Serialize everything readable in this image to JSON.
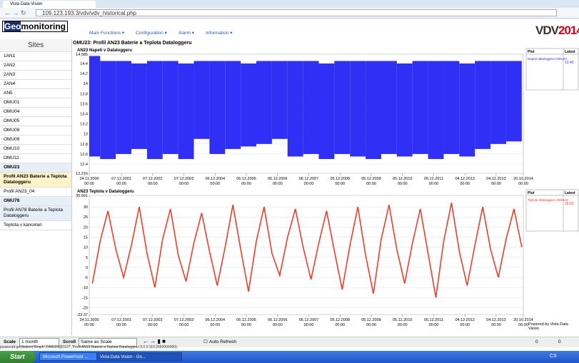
{
  "browser": {
    "tab": "Vista Data Vision",
    "address": "109.123.193.3/vdv/vdv_historical.php"
  },
  "header": {
    "logo": [
      "Geo",
      "monitoring"
    ],
    "menus": [
      "Main Functions",
      "Configuration",
      "Alarm",
      "Information"
    ],
    "brand": [
      "VDV",
      "2014"
    ]
  },
  "sidebar": {
    "title": "Sites",
    "items": [
      "1AN1",
      "2AN2",
      "2AN3",
      "2AN4",
      "AN5",
      "OMU01",
      "OMU04",
      "OMU05",
      "OMU08",
      "OMU09",
      "OMU10",
      "OMU11",
      "OMU23",
      "Profil AN23 Baterie a Teplota Dataloggeru",
      "Profil AN23_04",
      "OMU78",
      "Profil AN78 Baterie a Teplota Dataloggeru",
      "Teplota v kancelari"
    ]
  },
  "page_title": "OMU23: Profil AN23 Baterie a Teplota Dataloggeru",
  "chart_data": [
    {
      "type": "range",
      "title": "AN23 Napeti v Dataloggeru",
      "legend_headers": [
        "Plot",
        "Latest"
      ],
      "grid": true,
      "x": [
        2001,
        2001.5,
        2002,
        2002.5,
        2003,
        2003.5,
        2004,
        2004.5,
        2005,
        2005.5,
        2006,
        2006.5,
        2007,
        2007.5,
        2008,
        2008.5,
        2009,
        2009.5,
        2010,
        2010.5,
        2011,
        2011.5,
        2012,
        2012.5,
        2013,
        2013.5,
        2014,
        2014.5
      ],
      "series": [
        {
          "name": "Napeti dataloggeru OMU23",
          "latest": "12.40",
          "color": "#2f2ff5",
          "values": [
            14.55,
            14.45,
            14.45,
            14.4,
            14.45,
            14.45,
            14.4,
            14.45,
            14.45,
            14.45,
            14.4,
            14.45,
            14.45,
            14.45,
            14.45,
            14.4,
            14.45,
            14.45,
            14.45,
            14.45,
            14.4,
            14.45,
            14.45,
            14.45,
            14.4,
            14.45,
            14.45,
            14.45
          ],
          "low": [
            12.55,
            12.5,
            12.6,
            12.7,
            12.5,
            12.6,
            12.5,
            12.9,
            12.6,
            12.7,
            12.75,
            12.8,
            12.9,
            12.55,
            12.6,
            12.5,
            12.6,
            12.55,
            12.5,
            12.6,
            12.55,
            12.6,
            12.5,
            12.6,
            12.55,
            12.7,
            12.8,
            12.85
          ]
        }
      ],
      "xlim": [
        2000.9,
        2014.8
      ],
      "xticks": [
        {
          "value": 2000.9,
          "label": "24.11.2000 00:00"
        },
        {
          "value": 2001.93,
          "label": "07.12.2001 00:00"
        },
        {
          "value": 2002.93,
          "label": "07.12.2002 00:00"
        },
        {
          "value": 2003.93,
          "label": "07.12.2003 00:00"
        },
        {
          "value": 2004.93,
          "label": "06.12.2004 00:00"
        },
        {
          "value": 2005.93,
          "label": "06.12.2005 00:00"
        },
        {
          "value": 2006.93,
          "label": "06.12.2006 00:00"
        },
        {
          "value": 2007.93,
          "label": "06.12.2007 00:00"
        },
        {
          "value": 2008.93,
          "label": "05.12.2008 00:00"
        },
        {
          "value": 2009.93,
          "label": "05.12.2009 00:00"
        },
        {
          "value": 2010.93,
          "label": "05.12.2010 00:00"
        },
        {
          "value": 2011.93,
          "label": "05.12.2011 00:00"
        },
        {
          "value": 2012.93,
          "label": "04.12.2012 00:00"
        },
        {
          "value": 2013.93,
          "label": "04.12.2013 00:00"
        },
        {
          "value": 2014.8,
          "label": "20.10.2014 00:00"
        }
      ],
      "ylim": [
        12.216,
        14.585
      ],
      "yticks": [
        12.216,
        12.4,
        12.6,
        12.8,
        13,
        13.2,
        13.4,
        13.6,
        13.8,
        14,
        14.2,
        14.4,
        14.585
      ]
    },
    {
      "type": "line",
      "title": "AN23 Teplota v Dataloggeru",
      "legend_headers": [
        "Plot",
        "Latest"
      ],
      "grid": true,
      "x": [
        2001,
        2001.25,
        2001.5,
        2001.75,
        2002,
        2002.25,
        2002.5,
        2002.75,
        2003,
        2003.25,
        2003.5,
        2003.75,
        2004,
        2004.25,
        2004.5,
        2004.75,
        2005,
        2005.25,
        2005.5,
        2005.75,
        2006,
        2006.25,
        2006.5,
        2006.75,
        2007,
        2007.25,
        2007.5,
        2007.75,
        2008,
        2008.25,
        2008.5,
        2008.75,
        2009,
        2009.25,
        2009.5,
        2009.75,
        2010,
        2010.25,
        2010.5,
        2010.75,
        2011,
        2011.25,
        2011.5,
        2011.75,
        2012,
        2012.25,
        2012.5,
        2012.75,
        2013,
        2013.25,
        2013.5,
        2013.75,
        2014,
        2014.25,
        2014.5,
        2014.75
      ],
      "series": [
        {
          "name": "Teplota dataloggeru OMU23",
          "latest": "16.63",
          "color": "#f03c28",
          "values": [
            -8,
            13,
            28,
            9,
            -5,
            11,
            30,
            7,
            -10,
            14,
            29,
            6,
            -7,
            12,
            27,
            8,
            -9,
            10,
            31,
            9,
            -12,
            13,
            30,
            7,
            -4,
            15,
            29,
            10,
            -6,
            12,
            28,
            8,
            -11,
            11,
            30,
            6,
            -13,
            14,
            31,
            9,
            -8,
            12,
            29,
            7,
            -15,
            13,
            32,
            8,
            -9,
            11,
            30,
            9,
            -5,
            14,
            29,
            10
          ]
        }
      ],
      "xlim": [
        2000.9,
        2014.8
      ],
      "xticks": [
        {
          "value": 2000.9,
          "label": "24.11.2000 00:00"
        },
        {
          "value": 2001.93,
          "label": "07.12.2001 00:00"
        },
        {
          "value": 2002.93,
          "label": "07.12.2002 00:00"
        },
        {
          "value": 2003.93,
          "label": "07.12.2003 00:00"
        },
        {
          "value": 2004.93,
          "label": "06.12.2004 00:00"
        },
        {
          "value": 2005.93,
          "label": "06.12.2005 00:00"
        },
        {
          "value": 2006.93,
          "label": "06.12.2006 00:00"
        },
        {
          "value": 2007.93,
          "label": "06.12.2007 00:00"
        },
        {
          "value": 2008.93,
          "label": "05.12.2008 00:00"
        },
        {
          "value": 2009.93,
          "label": "05.12.2009 00:00"
        },
        {
          "value": 2010.93,
          "label": "05.12.2010 00:00"
        },
        {
          "value": 2011.93,
          "label": "05.12.2011 00:00"
        },
        {
          "value": 2012.93,
          "label": "04.12.2012 00:00"
        },
        {
          "value": 2013.93,
          "label": "04.12.2013 00:00"
        },
        {
          "value": 2014.8,
          "label": "20.10.2014 00:00"
        }
      ],
      "ylim": [
        -23.37,
        35.691
      ],
      "yticks": [
        -23.37,
        -20,
        -15,
        -10,
        -5,
        0,
        5,
        10,
        15,
        20,
        25,
        30,
        35.691
      ]
    }
  ],
  "powered_by": "Powered by Vista Data Vision",
  "controls": {
    "scale_label": "Scale",
    "scale": "1 month",
    "scroll_label": "Scroll",
    "scroll": "Same as Scale",
    "auto_refresh": "Auto Refresh",
    "alarms": "0",
    "messages": "0"
  },
  "status": "javascript:getStation('Graph','OMU23@0107','Profil AN23 Baterie a Teplota Dataloggeru',0,0,0,110,2592000000);",
  "taskbar": {
    "start": "Start",
    "windows": [
      "Microsoft PowerPoint ...",
      "Vista Data Vision - Go..."
    ],
    "lang": "CS"
  }
}
